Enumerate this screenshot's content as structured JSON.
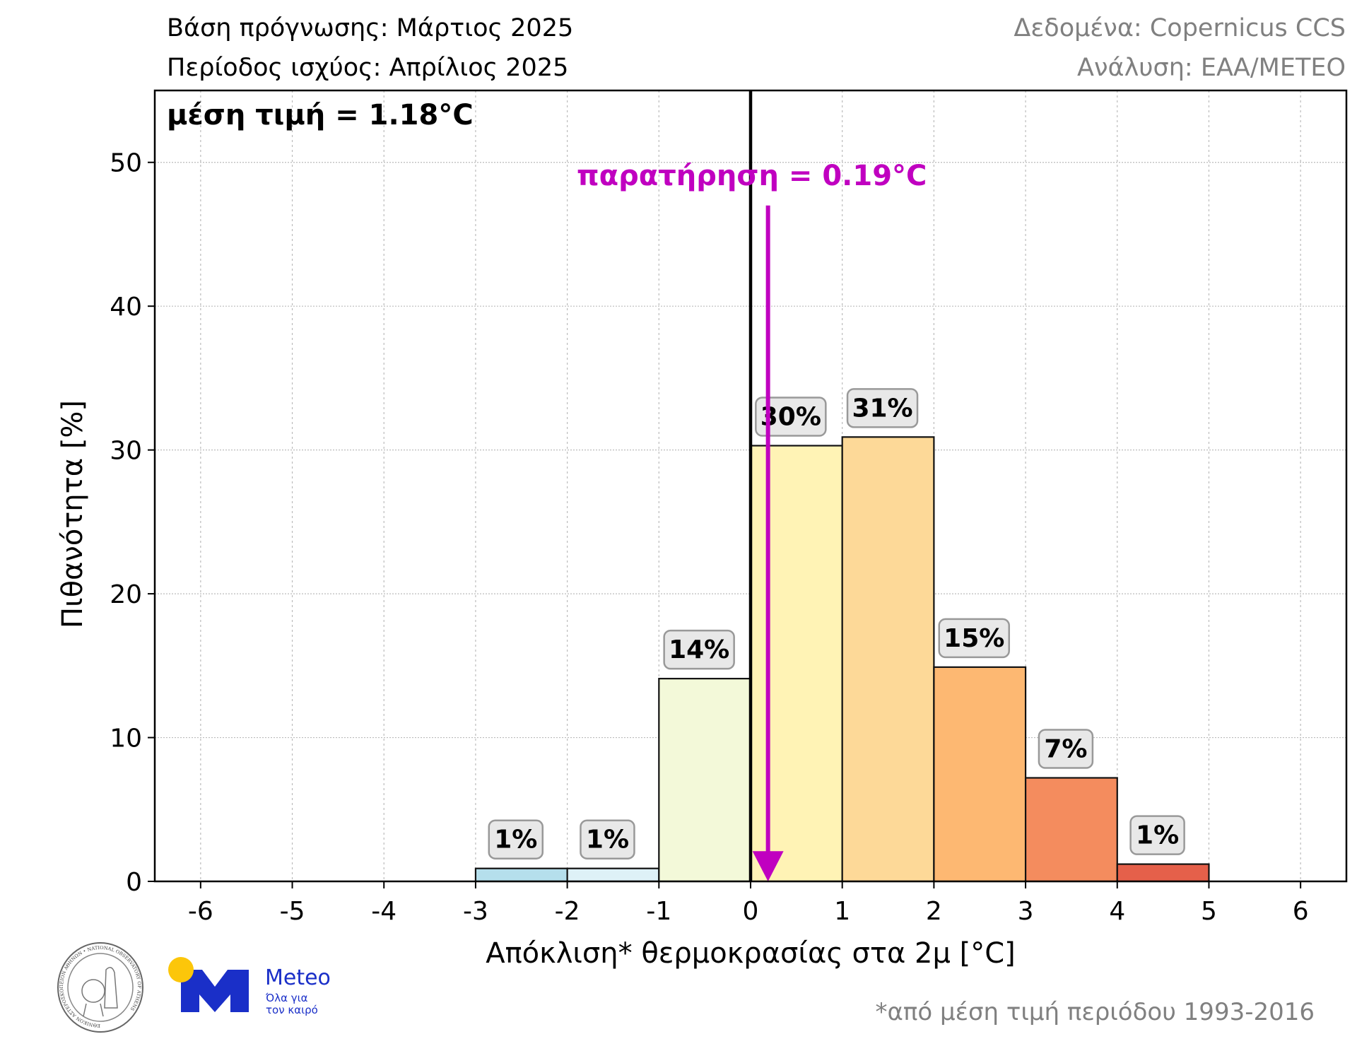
{
  "header": {
    "forecast_base": "Βάση πρόγνωσης: Μάρτιος 2025",
    "validity_period": "Περίοδος ισχύος: Απρίλιος 2025",
    "data_source": "Δεδομένα: Copernicus CCS",
    "analysis": "Ανάλυση: ΕΑΑ/METEO"
  },
  "footer": {
    "footnote": "*από μέση τιμή περιόδου 1993-2016",
    "meteo_logo_text": "Meteo",
    "meteo_tagline_1": "Όλα για",
    "meteo_tagline_2": "τον καιρό",
    "observatory_seal_text": "ΕΘΝΙΚΟΝ ΑΣΤΕΡΟΣΚΟΠΕΙΟΝ ΑΘΗΝΩΝ • NATIONAL OBSERVATORY OF ATHENS"
  },
  "chart_data": {
    "type": "bar",
    "xlabel": "Απόκλιση* θερμοκρασίας στα 2μ [°C]",
    "ylabel": "Πιθανότητα [%]",
    "xlim": [
      -6.5,
      6.5
    ],
    "ylim": [
      0,
      55
    ],
    "xticks": [
      -6,
      -5,
      -4,
      -3,
      -2,
      -1,
      0,
      1,
      2,
      3,
      4,
      5,
      6
    ],
    "yticks": [
      0,
      10,
      20,
      30,
      40,
      50
    ],
    "grid": true,
    "bins": [
      {
        "from": -3,
        "to": -2,
        "value": 0.9,
        "label": "1%",
        "color": "#b5dfec"
      },
      {
        "from": -2,
        "to": -1,
        "value": 0.9,
        "label": "1%",
        "color": "#def1f7"
      },
      {
        "from": -1,
        "to": 0,
        "value": 14.1,
        "label": "14%",
        "color": "#f3f9d9"
      },
      {
        "from": 0,
        "to": 1,
        "value": 30.3,
        "label": "30%",
        "color": "#fff3b5"
      },
      {
        "from": 1,
        "to": 2,
        "value": 30.9,
        "label": "31%",
        "color": "#fdd998"
      },
      {
        "from": 2,
        "to": 3,
        "value": 14.9,
        "label": "15%",
        "color": "#fdb872"
      },
      {
        "from": 3,
        "to": 4,
        "value": 7.2,
        "label": "7%",
        "color": "#f48c5e"
      },
      {
        "from": 4,
        "to": 5,
        "value": 1.2,
        "label": "1%",
        "color": "#e5604a"
      }
    ],
    "mean_annotation": "μέση τιμή = 1.18°C",
    "mean_value": 1.18,
    "observation_annotation": "παρατήρηση = 0.19°C",
    "observation_value": 0.19,
    "observation_color": "#c000c0"
  }
}
